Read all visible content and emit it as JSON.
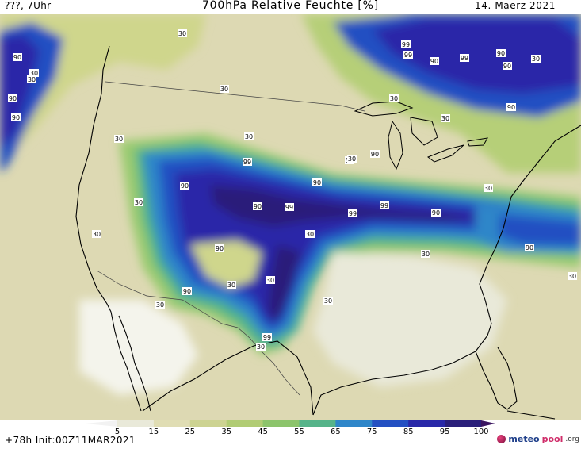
{
  "header": {
    "left": "???, 7Uhr",
    "title": "700hPa Relative Feuchte [%]",
    "right": "14. Maerz 2021"
  },
  "footer": {
    "run_info": "+78h Init:00Z11MAR2021",
    "brand_a": "meteo",
    "brand_b": "pool",
    "brand_c": ".org"
  },
  "legend": {
    "ticks": [
      "5",
      "15",
      "25",
      "35",
      "45",
      "55",
      "65",
      "75",
      "85",
      "95",
      "100"
    ],
    "colors": [
      "#fbfbfb",
      "#e9e9d9",
      "#e0ddb4",
      "#cdd392",
      "#b1cc74",
      "#8cc46b",
      "#56b48a",
      "#2f86c9",
      "#2450c2",
      "#2928a8",
      "#2a1f7a"
    ]
  },
  "map_labels": [
    {
      "text": "30"
    },
    {
      "text": "90"
    },
    {
      "text": "30"
    },
    {
      "text": "90"
    },
    {
      "text": "90"
    },
    {
      "text": "30"
    },
    {
      "text": "30"
    },
    {
      "text": "30"
    },
    {
      "text": "90"
    },
    {
      "text": "99"
    },
    {
      "text": "99"
    },
    {
      "text": "90"
    },
    {
      "text": "99"
    },
    {
      "text": "99"
    },
    {
      "text": "90"
    },
    {
      "text": "30"
    },
    {
      "text": "90"
    },
    {
      "text": "99"
    },
    {
      "text": "99"
    },
    {
      "text": "90"
    },
    {
      "text": "99"
    },
    {
      "text": "90"
    },
    {
      "text": "90"
    },
    {
      "text": "30"
    },
    {
      "text": "90"
    },
    {
      "text": "30"
    },
    {
      "text": "30"
    },
    {
      "text": "90"
    },
    {
      "text": "30"
    },
    {
      "text": "90"
    },
    {
      "text": "30"
    },
    {
      "text": "30"
    },
    {
      "text": "90"
    },
    {
      "text": "30"
    },
    {
      "text": "30"
    },
    {
      "text": "99"
    },
    {
      "text": "30"
    },
    {
      "text": "30"
    },
    {
      "text": "30"
    },
    {
      "text": "30"
    },
    {
      "text": "30"
    },
    {
      "text": "90"
    },
    {
      "text": "30"
    },
    {
      "text": "30"
    },
    {
      "text": "30"
    }
  ]
}
